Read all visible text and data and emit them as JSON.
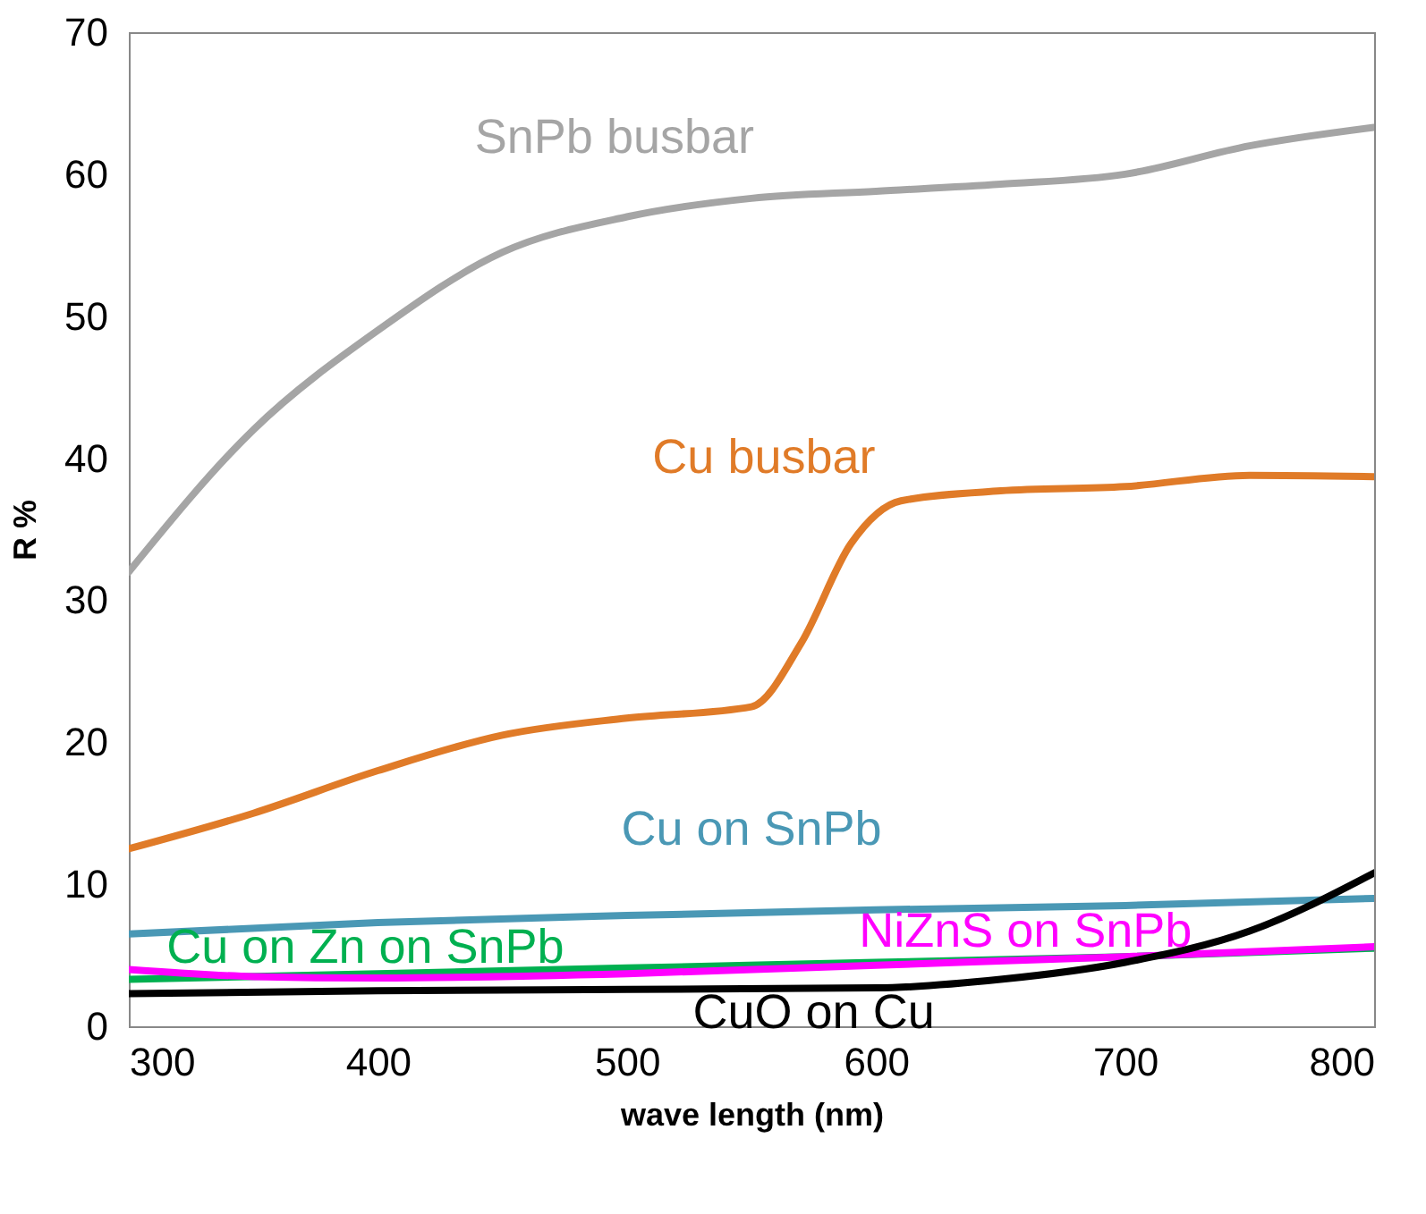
{
  "chart_data": {
    "type": "line",
    "xlabel": "wave length (nm)",
    "ylabel": "R %",
    "xlim": [
      300,
      800
    ],
    "xticks": [
      300,
      400,
      500,
      600,
      700,
      800
    ],
    "ylim": [
      0,
      70
    ],
    "yticks": [
      0,
      10,
      20,
      30,
      40,
      50,
      60,
      70
    ],
    "marker": "none",
    "line_style": "solid",
    "series": [
      {
        "name": "SnPb busbar",
        "color": "#a5a5a5",
        "x": [
          300,
          350,
          400,
          450,
          500,
          550,
          600,
          650,
          700,
          750,
          800
        ],
        "values": [
          32,
          42,
          49,
          54.5,
          57,
          58.3,
          58.8,
          59.3,
          60,
          62,
          63.3
        ]
      },
      {
        "name": "Cu busbar",
        "color": "#e07b28",
        "x": [
          300,
          350,
          400,
          450,
          500,
          550,
          570,
          590,
          610,
          650,
          700,
          750,
          800
        ],
        "values": [
          12.5,
          15,
          18,
          20.5,
          21.7,
          22.5,
          27,
          34,
          37,
          37.7,
          38,
          38.8,
          38.7
        ]
      },
      {
        "name": "Cu on SnPb",
        "color": "#4a98b5",
        "x": [
          300,
          400,
          500,
          600,
          700,
          800
        ],
        "values": [
          6.5,
          7.3,
          7.8,
          8.2,
          8.5,
          9
        ]
      },
      {
        "name": "Cu on Zn on SnPb",
        "color": "#00b050",
        "x": [
          300,
          400,
          500,
          600,
          700,
          800
        ],
        "values": [
          3.3,
          3.7,
          4.1,
          4.5,
          4.9,
          5.5
        ]
      },
      {
        "name": "NiZnS on SnPb",
        "color": "#ff00ff",
        "x": [
          300,
          350,
          400,
          500,
          600,
          700,
          800
        ],
        "values": [
          4,
          3.5,
          3.4,
          3.7,
          4.3,
          4.9,
          5.6
        ]
      },
      {
        "name": "CuO on Cu",
        "color": "#000000",
        "x": [
          300,
          400,
          500,
          600,
          650,
          700,
          750,
          800
        ],
        "values": [
          2.3,
          2.5,
          2.6,
          2.7,
          3.3,
          4.5,
          6.7,
          10.8
        ]
      }
    ]
  }
}
